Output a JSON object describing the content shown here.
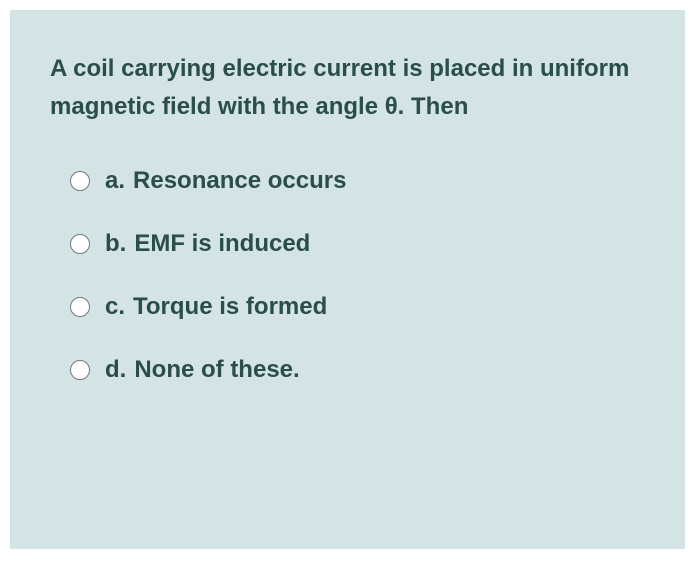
{
  "question": {
    "text": "A coil carrying electric current is placed in uniform magnetic field with the angle θ. Then",
    "text_color": "#2a4d4d",
    "font_size": 24,
    "font_weight": "bold",
    "background_color": "#d4e4e4"
  },
  "options": [
    {
      "letter": "a.",
      "text": "Resonance occurs"
    },
    {
      "letter": "b.",
      "text": "EMF is induced"
    },
    {
      "letter": "c.",
      "text": "Torque is formed"
    },
    {
      "letter": "d.",
      "text": "None of these."
    }
  ],
  "styling": {
    "option_text_color": "#2a4d4d",
    "option_font_size": 24,
    "option_font_weight": "bold",
    "radio_size": 20
  }
}
